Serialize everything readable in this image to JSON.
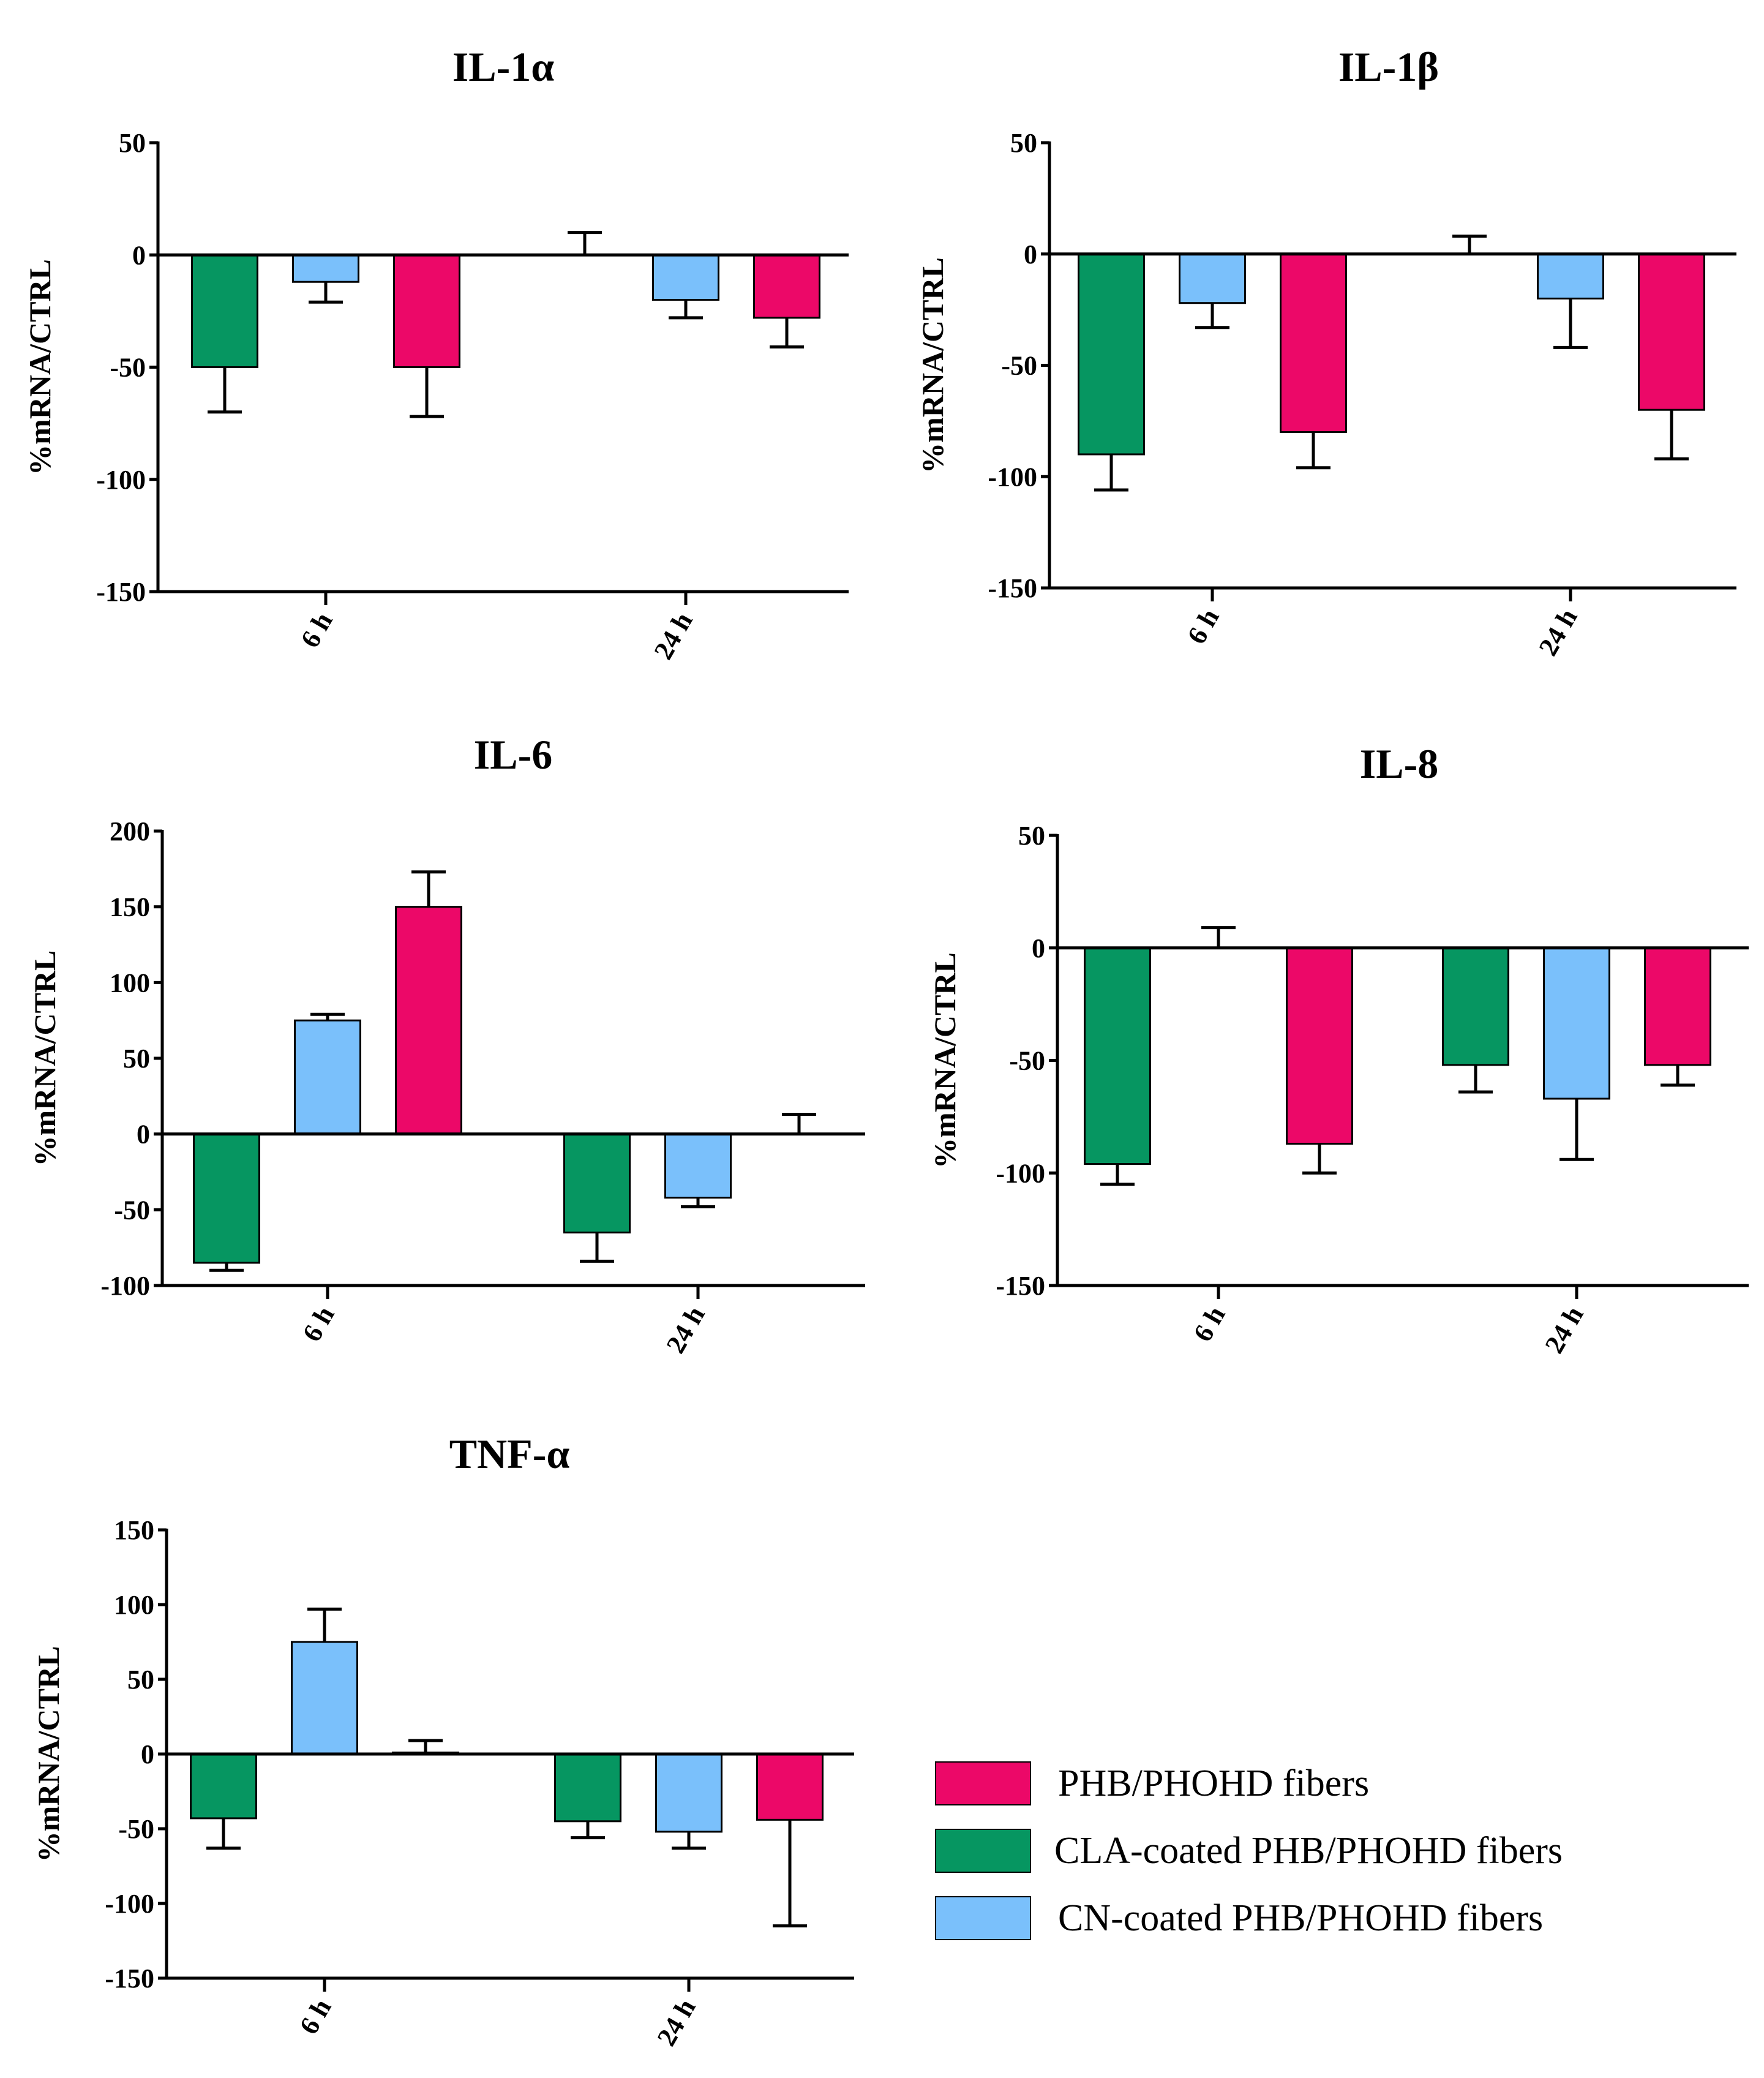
{
  "legend": [
    {
      "key": "phb",
      "label": "PHB/PHOHD fibers",
      "color": "#EC0868"
    },
    {
      "key": "cla",
      "label": "CLA-coated PHB/PHOHD fibers",
      "color": "#069661"
    },
    {
      "key": "cn",
      "label": "CN-coated PHB/PHOHD fibers",
      "color": "#7AC0FB"
    }
  ],
  "chart_data": [
    {
      "id": "il1a",
      "type": "bar",
      "title": "IL-1α",
      "ylabel": "%mRNA/CTRL",
      "categories": [
        "6 h",
        "24 h"
      ],
      "ylim": [
        -150,
        50
      ],
      "yticks": [
        50,
        0,
        -50,
        -100,
        -150
      ],
      "series": [
        {
          "key": "cla",
          "values": [
            -50,
            0
          ],
          "errors": [
            20,
            10
          ]
        },
        {
          "key": "cn",
          "values": [
            -12,
            -20
          ],
          "errors": [
            9,
            8
          ]
        },
        {
          "key": "phb",
          "values": [
            -50,
            -28
          ],
          "errors": [
            22,
            13
          ]
        }
      ]
    },
    {
      "id": "il1b",
      "type": "bar",
      "title": "IL-1β",
      "ylabel": "%mRNA/CTRL",
      "categories": [
        "6 h",
        "24 h"
      ],
      "ylim": [
        -150,
        50
      ],
      "yticks": [
        50,
        0,
        -50,
        -100,
        -150
      ],
      "series": [
        {
          "key": "cla",
          "values": [
            -90,
            0
          ],
          "errors": [
            16,
            8
          ]
        },
        {
          "key": "cn",
          "values": [
            -22,
            -20
          ],
          "errors": [
            11,
            22
          ]
        },
        {
          "key": "phb",
          "values": [
            -80,
            -70
          ],
          "errors": [
            16,
            22
          ]
        }
      ]
    },
    {
      "id": "il6",
      "type": "bar",
      "title": "IL-6",
      "ylabel": "%mRNA/CTRL",
      "categories": [
        "6 h",
        "24 h"
      ],
      "ylim": [
        -100,
        200
      ],
      "yticks": [
        200,
        150,
        100,
        50,
        0,
        -50,
        -100
      ],
      "series": [
        {
          "key": "cla",
          "values": [
            -85,
            -65
          ],
          "errors": [
            5,
            19
          ]
        },
        {
          "key": "cn",
          "values": [
            75,
            -42
          ],
          "errors": [
            4,
            6
          ]
        },
        {
          "key": "phb",
          "values": [
            150,
            0
          ],
          "errors": [
            23,
            13
          ]
        }
      ]
    },
    {
      "id": "il8",
      "type": "bar",
      "title": "IL-8",
      "ylabel": "%mRNA/CTRL",
      "categories": [
        "6 h",
        "24 h"
      ],
      "ylim": [
        -150,
        50
      ],
      "yticks": [
        50,
        0,
        -50,
        -100,
        -150
      ],
      "series": [
        {
          "key": "cla",
          "values": [
            -96,
            -52
          ],
          "errors": [
            9,
            12
          ]
        },
        {
          "key": "cn",
          "values": [
            0,
            -67
          ],
          "errors": [
            9,
            27
          ]
        },
        {
          "key": "phb",
          "values": [
            -87,
            -52
          ],
          "errors": [
            13,
            9
          ]
        }
      ]
    },
    {
      "id": "tnfa",
      "type": "bar",
      "title": "TNF-α",
      "ylabel": "%mRNA/CTRL",
      "categories": [
        "6 h",
        "24 h"
      ],
      "ylim": [
        -150,
        150
      ],
      "yticks": [
        150,
        100,
        50,
        0,
        -50,
        -100,
        -150
      ],
      "series": [
        {
          "key": "cla",
          "values": [
            -43,
            -45
          ],
          "errors": [
            20,
            11
          ]
        },
        {
          "key": "cn",
          "values": [
            75,
            -52
          ],
          "errors": [
            22,
            11
          ]
        },
        {
          "key": "phb",
          "values": [
            1,
            -44
          ],
          "errors": [
            8,
            71
          ]
        }
      ]
    }
  ]
}
